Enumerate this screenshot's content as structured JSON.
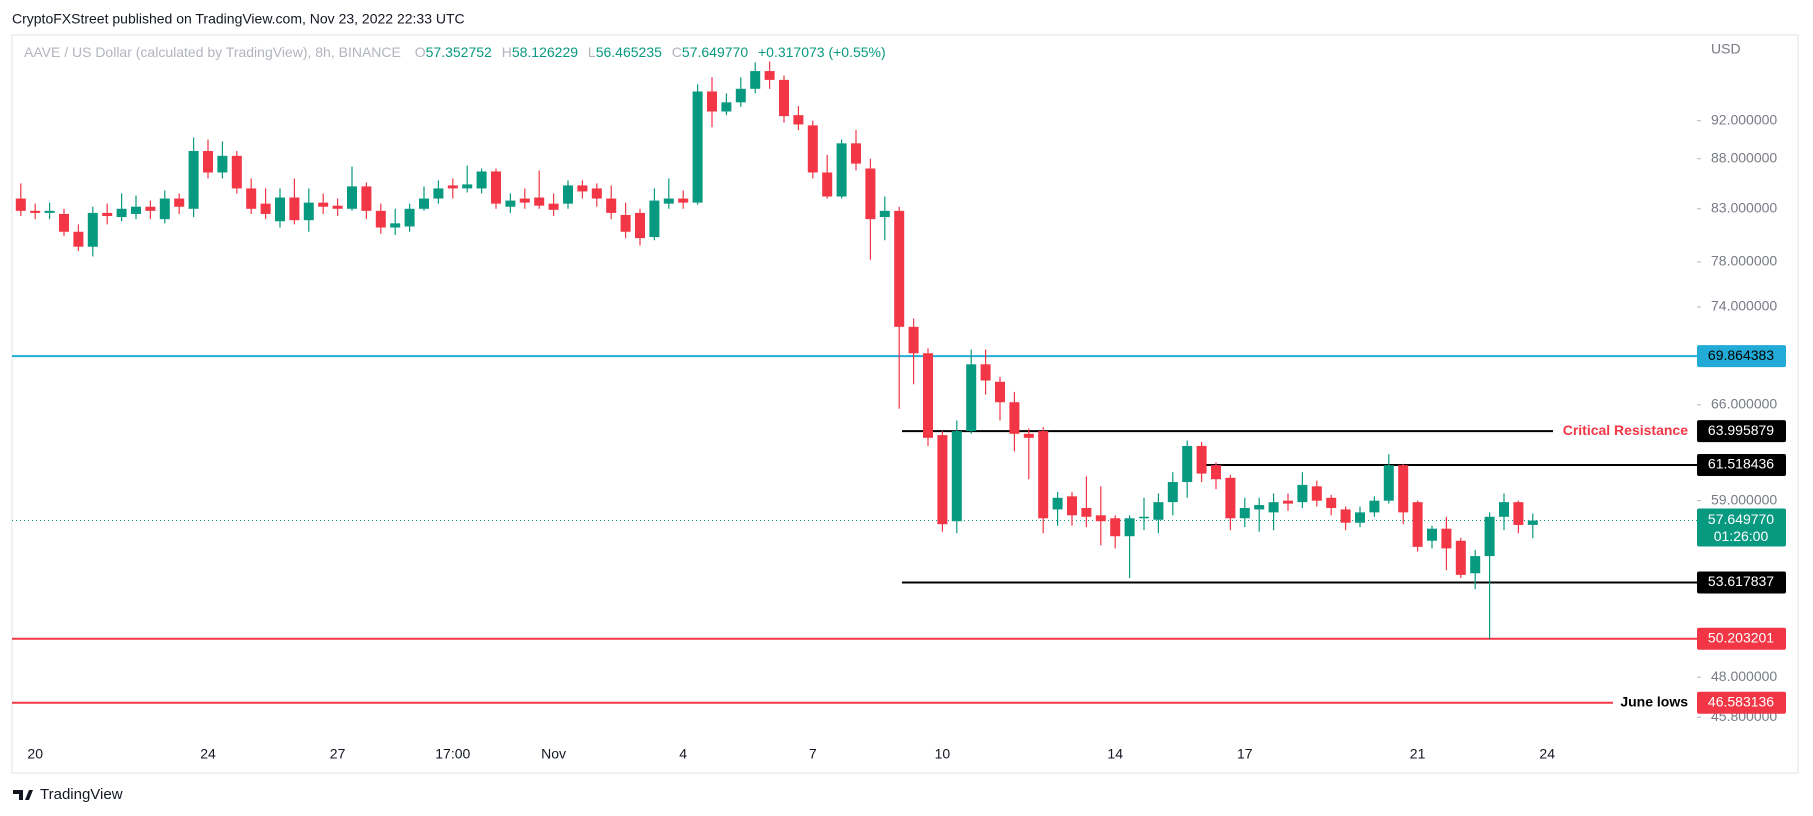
{
  "chart_data": {
    "type": "candlestick",
    "header": "CryptoFXStreet published on TradingView.com, Nov 23, 2022 22:33 UTC",
    "title": "AAVE / US Dollar (calculated by TradingView), 8h, BINANCE",
    "legend": {
      "open_label": "O",
      "open": 57.352752,
      "high_label": "H",
      "high": 58.126229,
      "low_label": "L",
      "low": 56.465235,
      "close_label": "C",
      "close": {
        "value": 57.64977,
        "label": "57.649770"
      },
      "change": "+0.317073 (+0.55%)"
    },
    "currency": "USD",
    "footer": "TradingView",
    "up_color": "#089981",
    "down_color": "#f23645",
    "categories": [
      null,
      "20",
      null,
      null,
      null,
      null,
      null,
      null,
      null,
      null,
      null,
      null,
      null,
      "24",
      null,
      null,
      null,
      null,
      null,
      null,
      null,
      null,
      "27",
      null,
      null,
      null,
      null,
      null,
      null,
      null,
      "17:00",
      null,
      null,
      null,
      null,
      null,
      null,
      "Nov",
      null,
      null,
      null,
      null,
      null,
      null,
      null,
      null,
      "4",
      null,
      null,
      null,
      null,
      null,
      null,
      null,
      null,
      "7",
      null,
      null,
      null,
      null,
      null,
      null,
      null,
      null,
      "10",
      null,
      null,
      null,
      null,
      null,
      null,
      null,
      null,
      null,
      null,
      null,
      "14",
      null,
      null,
      null,
      null,
      null,
      null,
      null,
      null,
      "17",
      null,
      null,
      null,
      null,
      null,
      null,
      null,
      null,
      null,
      null,
      null,
      "21",
      null,
      null,
      null,
      null,
      null,
      null,
      null,
      null,
      "24"
    ],
    "open": [
      84.0,
      82.8,
      82.6,
      82.5,
      80.8,
      79.4,
      82.6,
      82.2,
      82.5,
      83.2,
      82.0,
      84.0,
      83.0,
      88.8,
      86.6,
      88.3,
      85.0,
      83.5,
      81.8,
      84.1,
      81.9,
      83.6,
      83.3,
      83.0,
      85.2,
      82.8,
      81.2,
      81.3,
      83.0,
      84.0,
      85.3,
      85.0,
      85.0,
      86.7,
      83.2,
      84.0,
      84.1,
      83.5,
      83.5,
      85.3,
      85.0,
      84.0,
      82.4,
      82.6,
      80.3,
      83.5,
      84.0,
      83.6,
      95.2,
      93.0,
      94.0,
      95.5,
      97.5,
      96.5,
      92.6,
      91.5,
      86.6,
      84.2,
      89.6,
      87.0,
      82.2,
      82.8,
      72.3,
      70.1,
      63.7,
      57.6,
      64.0,
      69.2,
      67.8,
      66.2,
      63.8,
      64.0,
      58.4,
      59.3,
      58.5,
      58.0,
      57.8,
      56.6,
      57.8,
      57.7,
      58.9,
      60.3,
      62.9,
      61.5,
      60.6,
      57.8,
      58.4,
      58.2,
      59.0,
      58.9,
      60.0,
      59.2,
      58.4,
      57.5,
      58.2,
      59.0,
      61.5,
      58.9,
      56.3,
      57.1,
      56.3,
      54.2,
      55.3,
      57.9,
      58.9,
      57.352752,
      null
    ],
    "high": [
      85.5,
      83.5,
      83.6,
      83.0,
      81.5,
      83.2,
      83.5,
      84.5,
      84.3,
      83.8,
      84.8,
      84.5,
      90.2,
      90.0,
      89.8,
      88.8,
      86.0,
      85.0,
      85.0,
      86.0,
      85.0,
      84.5,
      84.0,
      87.2,
      85.6,
      83.5,
      83.0,
      83.5,
      85.2,
      85.8,
      86.0,
      87.3,
      87.0,
      87.0,
      84.5,
      85.0,
      86.8,
      84.5,
      85.8,
      85.8,
      85.5,
      85.3,
      83.6,
      83.0,
      85.0,
      86.0,
      84.8,
      96.0,
      96.8,
      95.0,
      96.8,
      98.5,
      98.6,
      97.0,
      93.6,
      92.0,
      88.4,
      90.0,
      91.0,
      88.0,
      84.2,
      83.2,
      73.0,
      70.5,
      64.0,
      64.8,
      70.4,
      70.4,
      68.2,
      67.0,
      64.2,
      64.3,
      59.6,
      59.6,
      60.7,
      60.0,
      58.0,
      58.0,
      59.2,
      59.5,
      61.0,
      63.3,
      63.2,
      61.7,
      60.8,
      59.2,
      59.2,
      59.5,
      59.5,
      61.0,
      60.4,
      59.4,
      58.6,
      58.6,
      59.3,
      62.3,
      61.6,
      59.0,
      57.3,
      57.9,
      56.5,
      55.7,
      58.2,
      59.5,
      59.0,
      58.126229,
      null
    ],
    "low": [
      82.3,
      82.0,
      82.0,
      80.4,
      79.0,
      78.5,
      81.5,
      81.8,
      82.0,
      82.0,
      81.6,
      82.5,
      82.2,
      86.0,
      86.0,
      84.5,
      82.5,
      82.0,
      81.2,
      81.5,
      80.8,
      82.5,
      82.3,
      82.8,
      82.0,
      80.6,
      80.5,
      80.8,
      82.8,
      83.5,
      84.0,
      84.6,
      84.5,
      83.0,
      82.6,
      83.0,
      83.0,
      82.3,
      83.0,
      84.0,
      83.2,
      82.0,
      80.2,
      79.5,
      80.0,
      83.0,
      83.0,
      83.4,
      91.3,
      92.6,
      93.5,
      95.0,
      95.5,
      91.8,
      91.0,
      86.0,
      84.0,
      84.0,
      86.8,
      78.2,
      80.0,
      65.7,
      67.6,
      62.9,
      56.9,
      56.8,
      63.8,
      66.8,
      64.8,
      62.5,
      60.5,
      56.8,
      57.3,
      57.3,
      57.2,
      56.0,
      55.8,
      53.9,
      57.0,
      56.8,
      58.0,
      59.2,
      60.3,
      59.8,
      57.0,
      57.2,
      56.9,
      57.0,
      58.3,
      58.5,
      58.6,
      58.0,
      57.0,
      57.2,
      57.9,
      58.8,
      57.4,
      55.6,
      55.8,
      54.4,
      53.9,
      53.2,
      50.203201,
      57.0,
      56.8,
      56.465235,
      null
    ],
    "close": [
      82.8,
      82.6,
      82.8,
      80.8,
      79.4,
      82.6,
      82.3,
      83.0,
      83.2,
      82.8,
      84.0,
      83.2,
      88.8,
      86.6,
      88.3,
      85.0,
      83.0,
      82.5,
      84.1,
      81.9,
      83.6,
      83.2,
      83.0,
      85.2,
      82.8,
      81.2,
      81.6,
      83.0,
      84.0,
      85.0,
      85.0,
      85.4,
      86.7,
      83.5,
      83.8,
      83.6,
      83.3,
      82.9,
      85.3,
      84.7,
      84.0,
      82.6,
      80.8,
      80.2,
      83.8,
      84.0,
      83.6,
      95.2,
      93.0,
      94.0,
      95.5,
      97.5,
      96.5,
      92.5,
      91.6,
      86.6,
      84.2,
      89.6,
      87.5,
      82.0,
      82.8,
      72.3,
      70.1,
      63.5,
      57.4,
      64.0,
      69.2,
      67.9,
      66.2,
      63.8,
      63.5,
      57.8,
      59.2,
      58.0,
      57.9,
      57.6,
      56.6,
      57.8,
      57.9,
      58.9,
      60.3,
      62.9,
      60.9,
      60.5,
      57.8,
      58.5,
      58.7,
      58.9,
      58.8,
      60.1,
      59.0,
      58.5,
      57.5,
      58.2,
      59.0,
      61.5,
      58.2,
      55.9,
      57.1,
      55.8,
      54.1,
      55.3,
      57.9,
      58.9,
      57.35,
      57.64977,
      null
    ],
    "log_scale": true,
    "ylim": [
      44.6,
      101.7
    ],
    "yticks": [
      {
        "value": 92,
        "label": "92.000000"
      },
      {
        "value": 88,
        "label": "88.000000"
      },
      {
        "value": 83,
        "label": "83.000000"
      },
      {
        "value": 78,
        "label": "78.000000"
      },
      {
        "value": 74,
        "label": "74.000000"
      },
      {
        "value": 66,
        "label": "66.000000"
      },
      {
        "value": 59,
        "label": "59.000000"
      },
      {
        "value": 48,
        "label": "48.000000"
      },
      {
        "value": 45.8,
        "label": "45.800000"
      }
    ],
    "levels": [
      {
        "value": 69.864383,
        "color": "#22abd6"
      },
      {
        "value": 63.995879,
        "color": "#000000",
        "annotation": "Critical Resistance",
        "annotation_color": "#f23645"
      },
      {
        "value": 61.518436,
        "color": "#000000"
      },
      {
        "value": 53.617837,
        "color": "#000000"
      },
      {
        "value": 50.203201,
        "color": "#f23645"
      },
      {
        "value": 46.583136,
        "color": "#f23645",
        "annotation": "June lows",
        "annotation_color": "#000000"
      }
    ],
    "last_price": {
      "value": 57.64977,
      "label": "57.649770"
    },
    "countdown": "01:26:00"
  }
}
